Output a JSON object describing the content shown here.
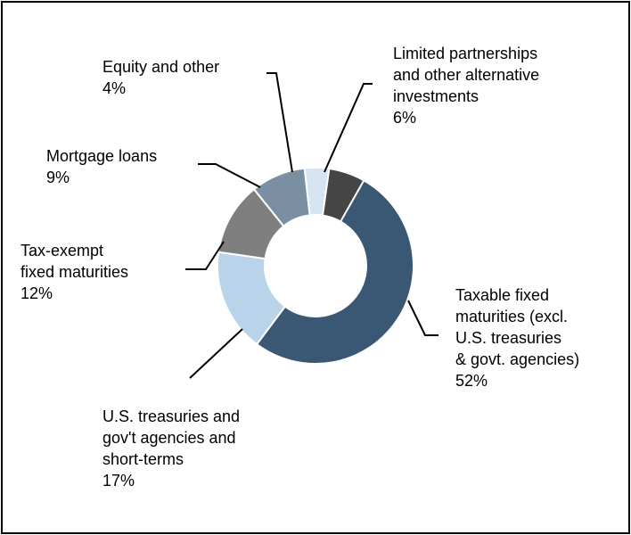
{
  "chart_data": {
    "type": "pie",
    "donut": true,
    "title": "",
    "slices": [
      {
        "label": "Limited partnerships and other alternative investments",
        "lines": [
          "Limited partnerships",
          "and other alternative",
          "investments"
        ],
        "pct_text": "6%",
        "value": 6,
        "color": "#454545"
      },
      {
        "label": "Taxable fixed maturities (excl. U.S. treasuries & govt. agencies)",
        "lines": [
          "Taxable fixed",
          "maturities (excl.",
          "U.S. treasuries",
          "& govt. agencies)"
        ],
        "pct_text": "52%",
        "value": 52,
        "color": "#3a5774"
      },
      {
        "label": "U.S. treasuries and gov't agencies and short-terms",
        "lines": [
          "U.S. treasuries and",
          "gov't agencies and",
          "short-terms"
        ],
        "pct_text": "17%",
        "value": 17,
        "color": "#b9d3ea"
      },
      {
        "label": "Tax-exempt fixed maturities",
        "lines": [
          "Tax-exempt",
          "fixed maturities"
        ],
        "pct_text": "12%",
        "value": 12,
        "color": "#7f7f7f"
      },
      {
        "label": "Mortgage loans",
        "lines": [
          "Mortgage loans"
        ],
        "pct_text": "9%",
        "value": 9,
        "color": "#7b8fa3"
      },
      {
        "label": "Equity and other",
        "lines": [
          "Equity and other"
        ],
        "pct_text": "4%",
        "value": 4,
        "color": "#d6e4f2"
      }
    ]
  }
}
